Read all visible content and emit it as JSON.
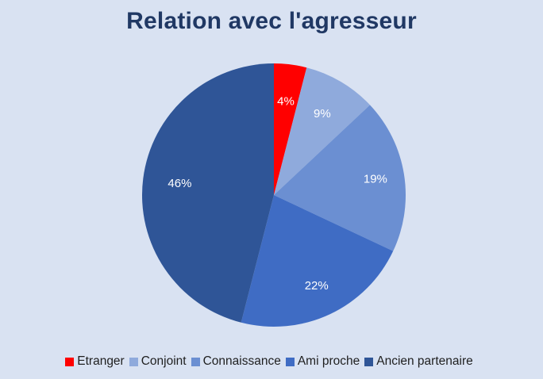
{
  "chart_data": {
    "type": "pie",
    "title": "Relation avec l'agresseur",
    "categories": [
      "Etranger",
      "Conjoint",
      "Connaissance",
      "Ami proche",
      "Ancien partenaire"
    ],
    "values": [
      4,
      9,
      19,
      22,
      46
    ],
    "data_labels": [
      "4%",
      "9%",
      "19%",
      "22%",
      "46%"
    ],
    "colors": [
      "#ff0000",
      "#8faadc",
      "#6b8fd2",
      "#3f6cc4",
      "#2f5597"
    ],
    "legend_position": "bottom",
    "start_angle": "12 o'clock, clockwise"
  }
}
